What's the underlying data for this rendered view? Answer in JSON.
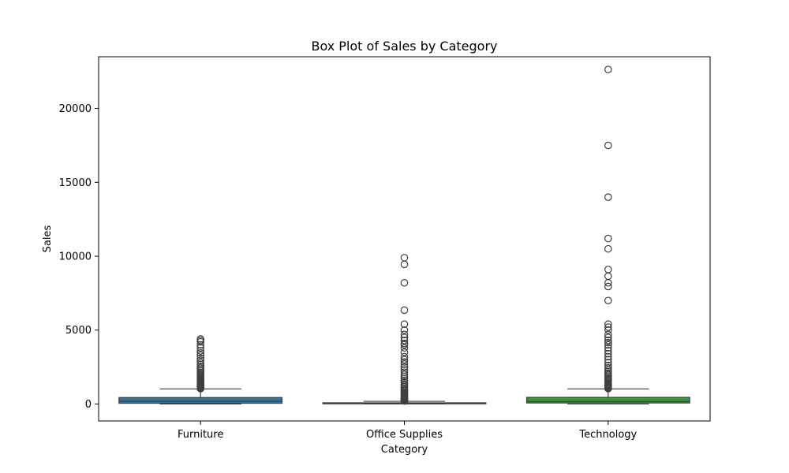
{
  "chart_data": {
    "type": "box",
    "title": "Box Plot of Sales by Category",
    "xlabel": "Category",
    "ylabel": "Sales",
    "ylim": [
      -1150,
      23500
    ],
    "yticks": [
      0,
      5000,
      10000,
      15000,
      20000
    ],
    "grid": false,
    "categories": [
      "Furniture",
      "Office Supplies",
      "Technology"
    ],
    "colors": [
      "#3274a1",
      "#e1812c",
      "#3a923a"
    ],
    "boxes": [
      {
        "category": "Furniture",
        "whisker_low": 1.9,
        "q1": 47,
        "median": 182,
        "q3": 436,
        "whisker_high": 1020,
        "outliers": [
          1040,
          1070,
          1110,
          1150,
          1190,
          1230,
          1270,
          1310,
          1350,
          1400,
          1450,
          1500,
          1560,
          1620,
          1680,
          1750,
          1820,
          1900,
          1980,
          2060,
          2150,
          2250,
          2350,
          2450,
          2560,
          2680,
          2800,
          2950,
          3100,
          3300,
          3450,
          3600,
          3800,
          4000,
          4200,
          4300,
          4400
        ]
      },
      {
        "category": "Office Supplies",
        "whisker_low": 0.4,
        "q1": 11,
        "median": 28,
        "q3": 80,
        "whisker_high": 180,
        "outliers": [
          200,
          240,
          280,
          320,
          370,
          420,
          480,
          540,
          600,
          670,
          740,
          810,
          890,
          970,
          1060,
          1150,
          1250,
          1360,
          1480,
          1600,
          1730,
          1870,
          2000,
          2150,
          2300,
          2500,
          2700,
          2850,
          3000,
          3200,
          3500,
          3800,
          4000,
          4100,
          4300,
          4500,
          4700,
          5000,
          5400,
          6350,
          8200,
          9450,
          9900
        ]
      },
      {
        "category": "Technology",
        "whisker_low": 1,
        "q1": 68,
        "median": 167,
        "q3": 448,
        "whisker_high": 1020,
        "outliers": [
          1040,
          1080,
          1120,
          1170,
          1220,
          1280,
          1340,
          1400,
          1470,
          1540,
          1620,
          1700,
          1790,
          1880,
          1980,
          2080,
          2200,
          2320,
          2450,
          2600,
          2800,
          3000,
          3200,
          3400,
          3600,
          3800,
          4000,
          4150,
          4300,
          4500,
          4700,
          5000,
          5200,
          5400,
          7000,
          7950,
          8200,
          8650,
          9100,
          10500,
          11200,
          14000,
          17500,
          22640
        ]
      }
    ]
  }
}
